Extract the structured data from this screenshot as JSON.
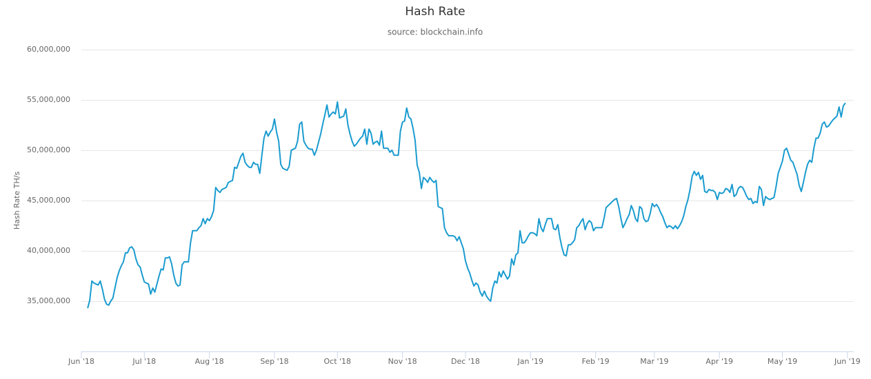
{
  "chart_data": {
    "type": "line",
    "title": "Hash Rate",
    "subtitle": "source: blockchain.info",
    "y_label": "Hash Rate TH/s",
    "color": "#1a9bcf",
    "grid": true,
    "ylim": [
      30000000,
      60000000
    ],
    "yticks": [
      {
        "value": 35000000,
        "label": "35,000,000"
      },
      {
        "value": 40000000,
        "label": "40,000,000"
      },
      {
        "value": 45000000,
        "label": "45,000,000"
      },
      {
        "value": 50000000,
        "label": "50,000,000"
      },
      {
        "value": 55000000,
        "label": "55,000,000"
      },
      {
        "value": 60000000,
        "label": "60,000,000"
      }
    ],
    "categories": [
      "Jun '18",
      null,
      null,
      null,
      null,
      null,
      null,
      null,
      null,
      null,
      null,
      null,
      null,
      null,
      null,
      null,
      null,
      null,
      null,
      null,
      null,
      null,
      null,
      null,
      null,
      null,
      null,
      null,
      null,
      null,
      "Jul '18",
      null,
      null,
      null,
      null,
      null,
      null,
      null,
      null,
      null,
      null,
      null,
      null,
      null,
      null,
      null,
      null,
      null,
      null,
      null,
      null,
      null,
      null,
      null,
      null,
      null,
      null,
      null,
      null,
      null,
      null,
      "Aug '18",
      null,
      null,
      null,
      null,
      null,
      null,
      null,
      null,
      null,
      null,
      null,
      null,
      null,
      null,
      null,
      null,
      null,
      null,
      null,
      null,
      null,
      null,
      null,
      null,
      null,
      null,
      null,
      null,
      null,
      null,
      "Sep '18",
      null,
      null,
      null,
      null,
      null,
      null,
      null,
      null,
      null,
      null,
      null,
      null,
      null,
      null,
      null,
      null,
      null,
      null,
      null,
      null,
      null,
      null,
      null,
      null,
      null,
      null,
      null,
      null,
      null,
      "Oct '18",
      null,
      null,
      null,
      null,
      null,
      null,
      null,
      null,
      null,
      null,
      null,
      null,
      null,
      null,
      null,
      null,
      null,
      null,
      null,
      null,
      null,
      null,
      null,
      null,
      null,
      null,
      null,
      null,
      null,
      null,
      "Nov '18",
      null,
      null,
      null,
      null,
      null,
      null,
      null,
      null,
      null,
      null,
      null,
      null,
      null,
      null,
      null,
      null,
      null,
      null,
      null,
      null,
      null,
      null,
      null,
      null,
      null,
      null,
      null,
      null,
      null,
      "Dec '18",
      null,
      null,
      null,
      null,
      null,
      null,
      null,
      null,
      null,
      null,
      null,
      null,
      null,
      null,
      null,
      null,
      null,
      null,
      null,
      null,
      null,
      null,
      null,
      null,
      null,
      null,
      null,
      null,
      null,
      null,
      "Jan '19",
      null,
      null,
      null,
      null,
      null,
      null,
      null,
      null,
      null,
      null,
      null,
      null,
      null,
      null,
      null,
      null,
      null,
      null,
      null,
      null,
      null,
      null,
      null,
      null,
      null,
      null,
      null,
      null,
      null,
      null,
      "Feb '19",
      null,
      null,
      null,
      null,
      null,
      null,
      null,
      null,
      null,
      null,
      null,
      null,
      null,
      null,
      null,
      null,
      null,
      null,
      null,
      null,
      null,
      null,
      null,
      null,
      null,
      null,
      null,
      "Mar '19",
      null,
      null,
      null,
      null,
      null,
      null,
      null,
      null,
      null,
      null,
      null,
      null,
      null,
      null,
      null,
      null,
      null,
      null,
      null,
      null,
      null,
      null,
      null,
      null,
      null,
      null,
      null,
      null,
      null,
      null,
      "Apr '19",
      null,
      null,
      null,
      null,
      null,
      null,
      null,
      null,
      null,
      null,
      null,
      null,
      null,
      null,
      null,
      null,
      null,
      null,
      null,
      null,
      null,
      null,
      null,
      null,
      null,
      null,
      null,
      null,
      null,
      "May '19",
      null,
      null,
      null,
      null,
      null,
      null,
      null,
      null,
      null,
      null,
      null,
      null,
      null,
      null,
      null,
      null,
      null,
      null,
      null,
      null,
      null,
      null,
      null,
      null,
      null,
      null,
      null,
      null,
      null,
      null,
      "Jun '19",
      null,
      null,
      null
    ],
    "values": [
      null,
      null,
      null,
      34300000,
      35100000,
      37000000,
      36800000,
      36700000,
      36600000,
      37000000,
      36200000,
      35200000,
      34700000,
      34600000,
      35000000,
      35300000,
      36300000,
      37300000,
      38000000,
      38500000,
      38900000,
      39800000,
      39800000,
      40300000,
      40400000,
      40100000,
      39200000,
      38600000,
      38400000,
      37600000,
      36900000,
      36800000,
      36700000,
      35700000,
      36300000,
      35900000,
      36700000,
      37500000,
      38200000,
      38100000,
      39300000,
      39300000,
      39400000,
      38700000,
      37600000,
      36800000,
      36500000,
      36600000,
      38600000,
      38900000,
      38900000,
      38900000,
      40800000,
      42000000,
      42000000,
      42000000,
      42300000,
      42500000,
      43200000,
      42700000,
      43200000,
      43000000,
      43400000,
      44000000,
      46300000,
      46000000,
      45800000,
      46100000,
      46200000,
      46300000,
      46800000,
      46900000,
      47000000,
      48300000,
      48200000,
      48800000,
      49400000,
      49700000,
      48800000,
      48500000,
      48300000,
      48300000,
      48800000,
      48600000,
      48600000,
      47700000,
      49500000,
      51200000,
      51900000,
      51400000,
      51800000,
      52100000,
      53100000,
      51800000,
      50900000,
      48600000,
      48200000,
      48100000,
      48000000,
      48400000,
      50000000,
      50100000,
      50200000,
      50900000,
      52600000,
      52800000,
      50900000,
      50500000,
      50200000,
      50100000,
      50100000,
      49500000,
      50000000,
      50800000,
      51600000,
      52600000,
      53500000,
      54500000,
      53300000,
      53600000,
      53800000,
      53600000,
      54800000,
      53200000,
      53300000,
      53400000,
      54100000,
      52500000,
      51600000,
      50900000,
      50400000,
      50600000,
      50900000,
      51200000,
      51400000,
      52100000,
      50600000,
      52100000,
      51700000,
      50600000,
      50800000,
      50900000,
      50500000,
      51900000,
      50200000,
      50200000,
      50200000,
      49800000,
      50000000,
      49500000,
      49500000,
      49500000,
      51900000,
      52800000,
      52900000,
      54200000,
      53300000,
      53100000,
      52200000,
      51000000,
      48500000,
      47800000,
      46200000,
      47300000,
      47100000,
      46800000,
      47300000,
      47000000,
      46800000,
      47000000,
      44400000,
      44300000,
      44200000,
      42300000,
      41800000,
      41500000,
      41500000,
      41500000,
      41400000,
      41000000,
      41400000,
      40800000,
      40200000,
      39000000,
      38300000,
      37800000,
      37100000,
      36500000,
      36800000,
      36600000,
      35900000,
      35500000,
      36000000,
      35500000,
      35200000,
      35000000,
      36300000,
      37000000,
      36800000,
      37900000,
      37400000,
      38000000,
      37600000,
      37200000,
      37500000,
      39200000,
      38600000,
      39600000,
      39800000,
      42000000,
      40800000,
      40800000,
      41100000,
      41500000,
      41800000,
      41800000,
      41700000,
      41500000,
      43200000,
      42300000,
      41900000,
      42600000,
      43200000,
      43200000,
      43200000,
      42200000,
      42100000,
      42600000,
      41300000,
      40300000,
      39600000,
      39500000,
      40600000,
      40600000,
      40800000,
      41100000,
      42300000,
      42500000,
      42900000,
      43200000,
      42100000,
      42700000,
      43000000,
      42800000,
      42000000,
      42300000,
      42300000,
      42300000,
      42300000,
      43200000,
      44300000,
      44500000,
      44700000,
      44900000,
      45100000,
      45200000,
      44400000,
      43300000,
      42300000,
      42700000,
      43200000,
      43600000,
      44500000,
      44000000,
      43200000,
      42900000,
      44400000,
      44200000,
      43200000,
      42900000,
      43000000,
      43700000,
      44700000,
      44400000,
      44600000,
      44300000,
      43800000,
      43400000,
      42800000,
      42300000,
      42500000,
      42400000,
      42200000,
      42500000,
      42200000,
      42500000,
      42900000,
      43500000,
      44400000,
      45100000,
      46100000,
      47400000,
      47900000,
      47500000,
      47800000,
      47100000,
      47500000,
      45900000,
      45800000,
      46100000,
      46000000,
      46000000,
      45800000,
      45100000,
      45800000,
      45700000,
      45800000,
      46200000,
      46100000,
      45800000,
      46600000,
      45400000,
      45600000,
      46200000,
      46400000,
      46300000,
      45900000,
      45400000,
      45100000,
      45200000,
      44700000,
      44900000,
      44800000,
      46400000,
      46100000,
      44500000,
      45400000,
      45200000,
      45100000,
      45200000,
      45300000,
      46400000,
      47700000,
      48300000,
      48900000,
      50000000,
      50200000,
      49600000,
      49000000,
      48800000,
      48200000,
      47600000,
      46500000,
      45900000,
      46800000,
      47800000,
      48600000,
      49000000,
      48800000,
      50200000,
      51200000,
      51200000,
      51700000,
      52600000,
      52800000,
      52300000,
      52400000,
      52700000,
      53000000,
      53200000,
      53400000,
      54300000,
      53300000,
      54400000,
      54700000,
      null,
      null,
      null,
      null
    ]
  }
}
